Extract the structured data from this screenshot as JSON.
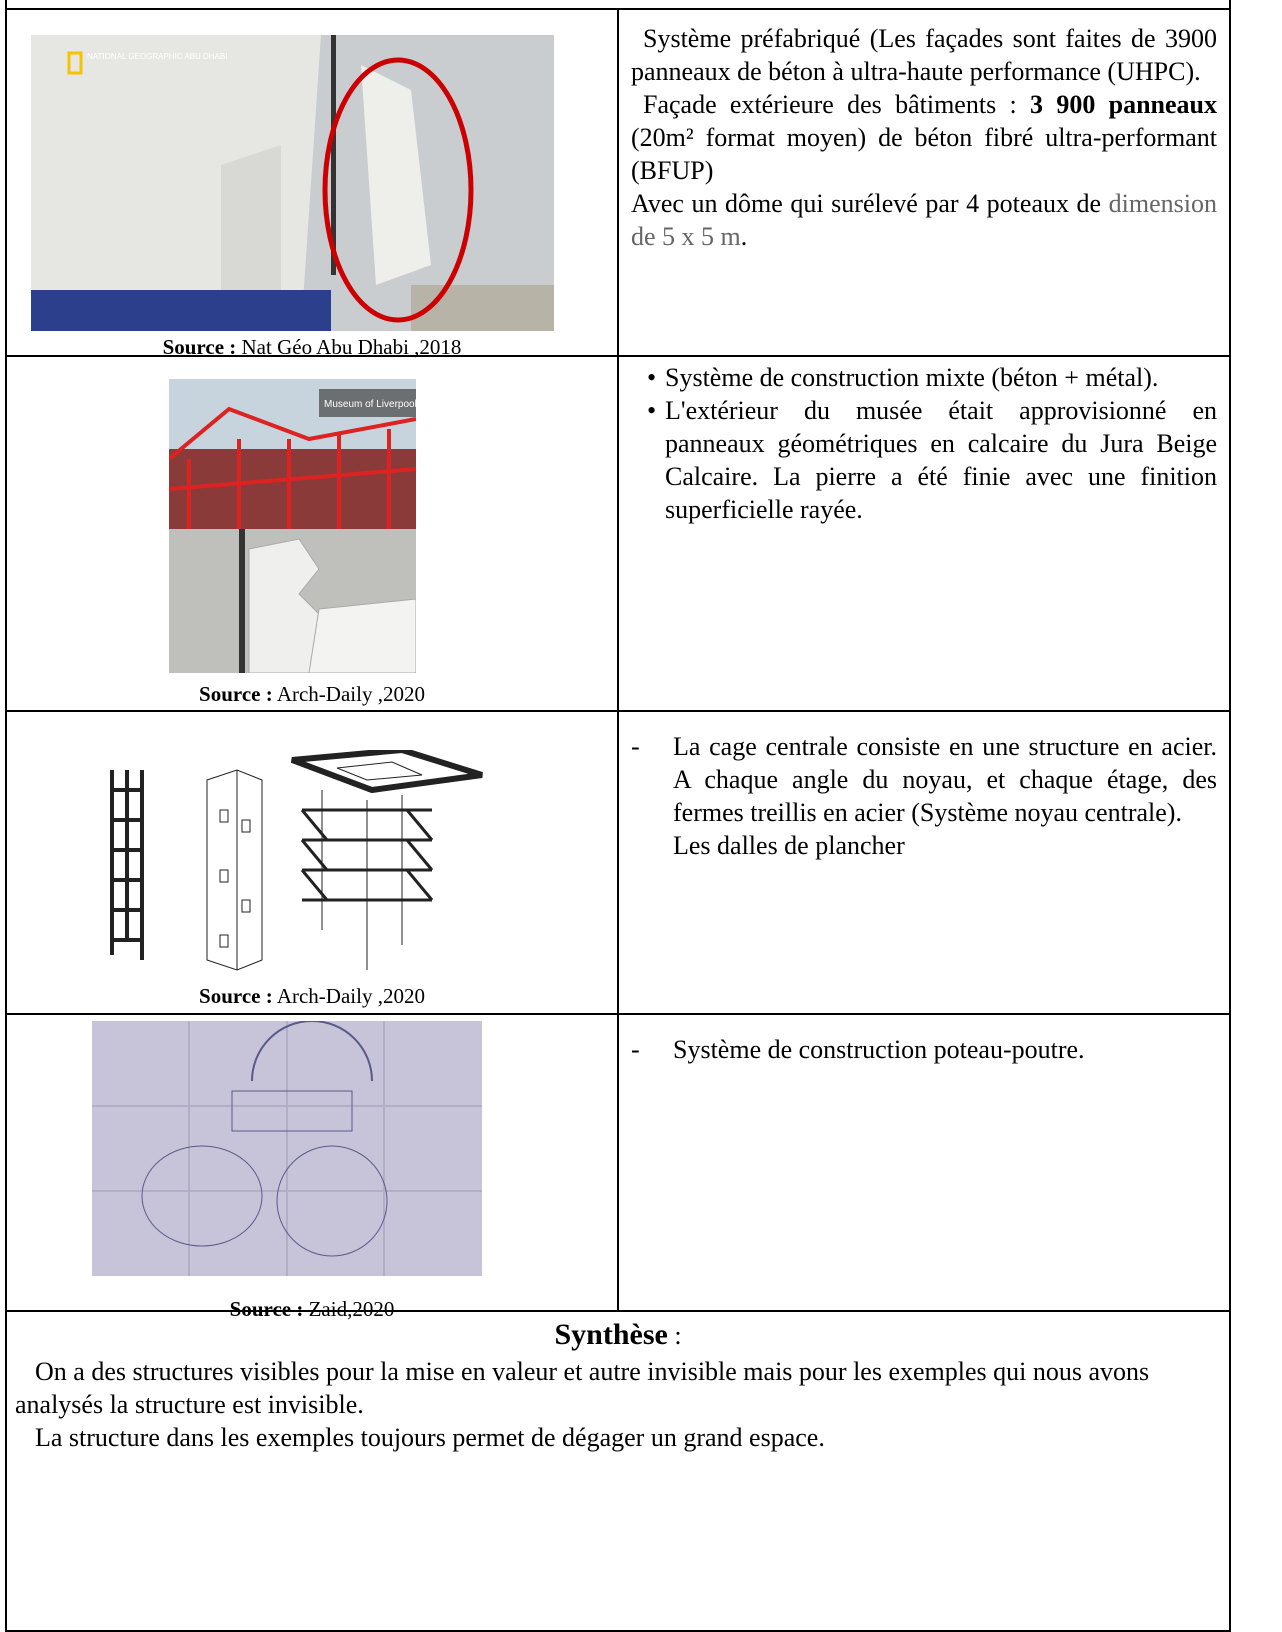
{
  "rows": [
    {
      "source_label": "Source :",
      "source": "Nat Géo Abu Dhabi ,2018",
      "image_overlay": "NATIONAL GEOGRAPHIC ABU DHABI",
      "paragraphs": [
        [
          "Système préfabriqué (Les façades sont faites de 3900 panneaux de béton à ultra-haute performance (UHPC)."
        ],
        [
          "Façade extérieure des bâtiments : ",
          "3 900 panneaux",
          " (20m² format moyen) de béton fibré ultra-performant (BFUP)"
        ],
        [
          "Avec un dôme qui surélevé par 4 poteaux de ",
          "dimension de 5 x 5 m",
          "."
        ]
      ]
    },
    {
      "source_label": "Source :",
      "source": "Arch-Daily ,2020",
      "image_overlay": "Museum of Liverpool",
      "bullets": [
        "Système de construction mixte (béton + métal).",
        "L'extérieur du musée était approvisionné en panneaux géométriques en calcaire du Jura Beige Calcaire. La pierre a été finie avec une finition superficielle rayée."
      ]
    },
    {
      "source_label": "Source :",
      "source": "Arch-Daily ,2020",
      "dash": "-",
      "item": "La cage centrale consiste en une structure en acier. A chaque angle du noyau, et chaque étage, des fermes treillis en acier (Système noyau centrale).",
      "continuation": "Les dalles de plancher"
    },
    {
      "source_label": "Source :",
      "source": "Zaid,2020",
      "dash": "-",
      "item": "Système de construction poteau-poutre."
    }
  ],
  "synthese": {
    "title": "Synthèse",
    "colon": " :",
    "paragraphs": [
      "On a des structures visibles pour la mise en valeur et autre invisible mais pour les exemples qui nous avons analysés la structure est invisible.",
      "La structure dans les exemples toujours permet de dégager un grand espace."
    ]
  }
}
